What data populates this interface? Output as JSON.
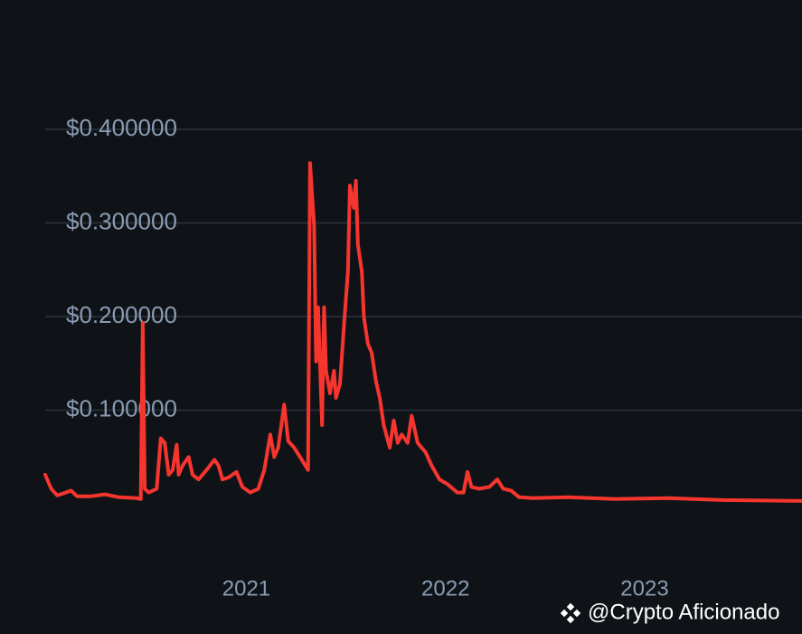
{
  "chart_data": {
    "type": "line",
    "x": [
      2019.99,
      2020.02,
      2020.05,
      2020.08,
      2020.12,
      2020.15,
      2020.22,
      2020.29,
      2020.36,
      2020.45,
      2020.47,
      2020.48,
      2020.49,
      2020.51,
      2020.55,
      2020.57,
      2020.59,
      2020.61,
      2020.63,
      2020.65,
      2020.66,
      2020.68,
      2020.71,
      2020.73,
      2020.76,
      2020.8,
      2020.84,
      2020.86,
      2020.88,
      2020.91,
      2020.95,
      2020.98,
      2021.02,
      2021.06,
      2021.09,
      2021.12,
      2021.14,
      2021.16,
      2021.19,
      2021.21,
      2021.24,
      2021.27,
      2021.31,
      2021.32,
      2021.34,
      2021.35,
      2021.36,
      2021.38,
      2021.39,
      2021.4,
      2021.42,
      2021.44,
      2021.45,
      2021.47,
      2021.49,
      2021.51,
      2021.52,
      2021.54,
      2021.55,
      2021.56,
      2021.58,
      2021.59,
      2021.61,
      2021.63,
      2021.65,
      2021.67,
      2021.69,
      2021.72,
      2021.74,
      2021.76,
      2021.78,
      2021.81,
      2021.83,
      2021.86,
      2021.9,
      2021.93,
      2021.97,
      2022.01,
      2022.06,
      2022.09,
      2022.11,
      2022.13,
      2022.17,
      2022.22,
      2022.26,
      2022.29,
      2022.33,
      2022.37,
      2022.44,
      2022.62,
      2022.85,
      2023.12,
      2023.39,
      2023.79
    ],
    "series": [
      {
        "color": "#f6352f",
        "values": [
          0.031,
          0.016,
          0.009,
          0.011,
          0.014,
          0.008,
          0.008,
          0.01,
          0.007,
          0.006,
          0.005,
          0.193,
          0.016,
          0.012,
          0.016,
          0.07,
          0.065,
          0.031,
          0.036,
          0.063,
          0.031,
          0.041,
          0.05,
          0.031,
          0.026,
          0.036,
          0.047,
          0.041,
          0.026,
          0.028,
          0.034,
          0.018,
          0.012,
          0.016,
          0.036,
          0.074,
          0.05,
          0.06,
          0.106,
          0.067,
          0.06,
          0.05,
          0.036,
          0.364,
          0.297,
          0.152,
          0.21,
          0.084,
          0.21,
          0.142,
          0.118,
          0.142,
          0.113,
          0.128,
          0.19,
          0.248,
          0.34,
          0.316,
          0.345,
          0.277,
          0.248,
          0.2,
          0.171,
          0.161,
          0.132,
          0.113,
          0.084,
          0.06,
          0.089,
          0.065,
          0.074,
          0.065,
          0.094,
          0.065,
          0.055,
          0.041,
          0.026,
          0.021,
          0.012,
          0.012,
          0.034,
          0.018,
          0.016,
          0.018,
          0.026,
          0.016,
          0.014,
          0.007,
          0.006,
          0.007,
          0.005,
          0.006,
          0.004,
          0.003
        ]
      }
    ],
    "xlim": [
      2019.99,
      2023.79
    ],
    "xticks": [
      2021,
      2022,
      2023
    ],
    "ylim": [
      0,
      0.4
    ],
    "yticks": [
      {
        "value": 0.1,
        "label": "$0.100000"
      },
      {
        "value": 0.2,
        "label": "$0.200000"
      },
      {
        "value": 0.3,
        "label": "$0.300000"
      },
      {
        "value": 0.4,
        "label": "$0.400000"
      }
    ],
    "grid": true,
    "watermark": "@Crypto Aficionado"
  }
}
